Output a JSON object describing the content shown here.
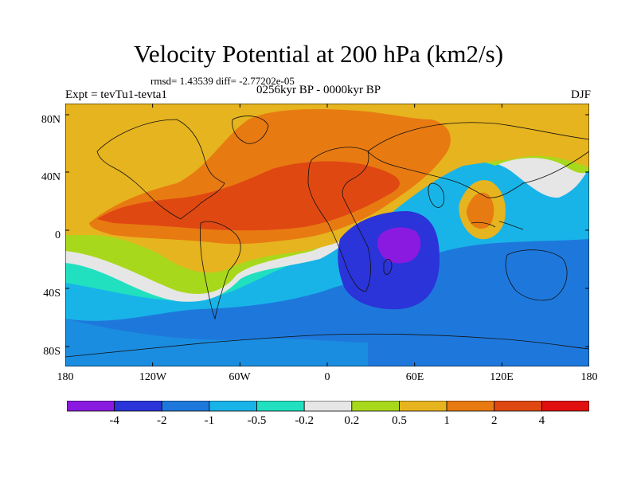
{
  "title": "Velocity Potential at 200 hPa (km2/s)",
  "stats": "rmsd= 1.43539 diff= -2.77202e-05",
  "expt": "Expt = tevTu1-tevta1",
  "period": "0256kyr BP - 0000kyr BP",
  "season": "DJF",
  "lat_labels": [
    "80N",
    "40N",
    "0",
    "40S",
    "80S"
  ],
  "lon_labels": [
    "180",
    "120W",
    "60W",
    "0",
    "60E",
    "120E",
    "180"
  ],
  "colorbar": {
    "levels": [
      "-4",
      "-2",
      "-1",
      "-0.5",
      "-0.2",
      "0.2",
      "0.5",
      "1",
      "2",
      "4"
    ],
    "colors": [
      "#8a1ae0",
      "#2a34d8",
      "#1e78dc",
      "#18b4e8",
      "#20e0c0",
      "#e6e6e6",
      "#a8d81c",
      "#e6b41e",
      "#e87a12",
      "#e04812",
      "#e01010"
    ]
  }
}
